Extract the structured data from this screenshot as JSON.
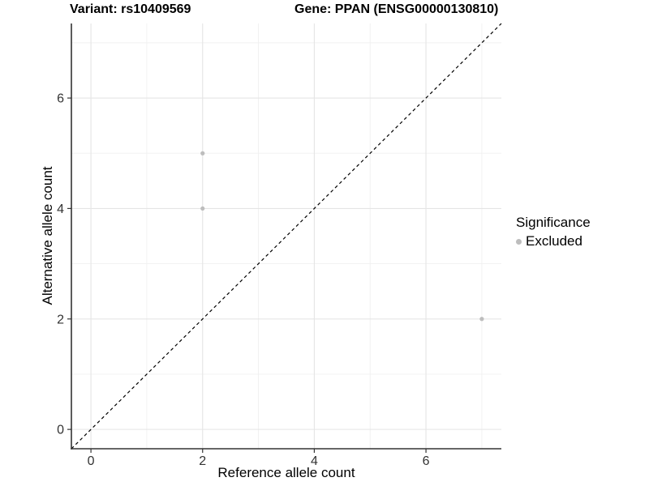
{
  "header": {
    "variant_title": "Variant: rs10409569",
    "gene_title": "Gene: PPAN (ENSG00000130810)"
  },
  "chart_data": {
    "type": "scatter",
    "xlabel": "Reference allele count",
    "ylabel": "Alternative allele count",
    "xlim": [
      -0.35,
      7.35
    ],
    "ylim": [
      -0.35,
      7.35
    ],
    "x_ticks": [
      0,
      2,
      4,
      6
    ],
    "y_ticks": [
      0,
      2,
      4,
      6
    ],
    "grid_major": [
      0,
      2,
      4,
      6
    ],
    "grid_minor": [
      1,
      3,
      5,
      7
    ],
    "series": [
      {
        "name": "Excluded",
        "color": "#bdbdbd",
        "points": [
          {
            "x": 2,
            "y": 5
          },
          {
            "x": 2,
            "y": 4
          },
          {
            "x": 7,
            "y": 2
          }
        ]
      }
    ],
    "abline": {
      "slope": 1,
      "intercept": 0,
      "style": "dashed",
      "color": "#000000"
    },
    "legend": {
      "title": "Significance",
      "position": "right",
      "items": [
        {
          "label": "Excluded",
          "color": "#bdbdbd"
        }
      ]
    },
    "colors": {
      "point": "#bdbdbd",
      "grid_major": "#e5e5e5",
      "grid_minor": "#f0f0f0",
      "axis_line": "#333333",
      "tick_text": "#333333"
    }
  }
}
